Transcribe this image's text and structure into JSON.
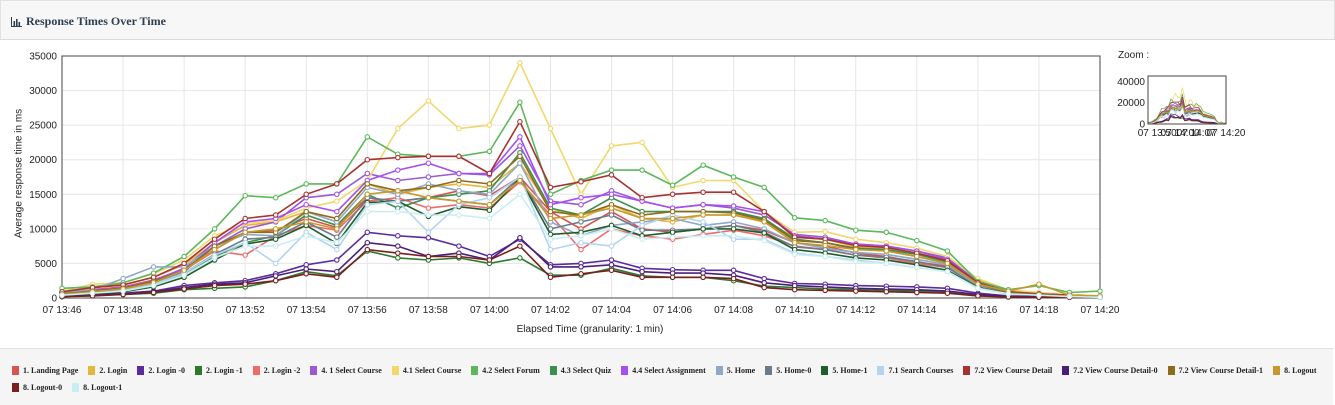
{
  "header": {
    "title": "Response Times Over Time",
    "icon": "bar-chart-icon"
  },
  "zoom_label": "Zoom :",
  "chart_data": {
    "type": "line",
    "ylabel": "Average response time in ms",
    "xlabel": "Elapsed Time (granularity: 1 min)",
    "ylim": [
      0,
      35000
    ],
    "yticks": [
      0,
      5000,
      10000,
      15000,
      20000,
      25000,
      30000,
      35000
    ],
    "x": [
      "13:46",
      "13:47",
      "13:48",
      "13:49",
      "13:50",
      "13:51",
      "13:52",
      "13:53",
      "13:54",
      "13:55",
      "13:56",
      "13:57",
      "13:58",
      "13:59",
      "14:00",
      "14:01",
      "14:02",
      "14:03",
      "14:04",
      "14:05",
      "14:06",
      "14:07",
      "14:08",
      "14:09",
      "14:10",
      "14:11",
      "14:12",
      "14:13",
      "14:14",
      "14:15",
      "14:16",
      "14:17",
      "14:18",
      "14:19",
      "14:20"
    ],
    "xtick_labels": [
      "07 13:46",
      "07 13:48",
      "07 13:50",
      "07 13:52",
      "07 13:54",
      "07 13:56",
      "07 13:58",
      "07 14:00",
      "07 14:02",
      "07 14:04",
      "07 14:06",
      "07 14:08",
      "07 14:10",
      "07 14:12",
      "07 14:14",
      "07 14:16",
      "07 14:18",
      "07 14:20"
    ],
    "grid": true,
    "legend_position": "bottom",
    "series": [
      {
        "name": "1. Landing Page",
        "color": "#d9534f",
        "values": [
          800,
          1200,
          1600,
          2600,
          4200,
          7000,
          9500,
          9800,
          11500,
          10200,
          14500,
          14000,
          14500,
          15500,
          14800,
          17500,
          12500,
          10000,
          12500,
          10000,
          9500,
          10000,
          10500,
          9800,
          8000,
          7500,
          6500,
          6000,
          5200,
          4600,
          1900,
          800,
          500,
          300,
          200
        ]
      },
      {
        "name": "2. Login",
        "color": "#e6b53c",
        "values": [
          900,
          1500,
          1900,
          3000,
          4800,
          8000,
          10500,
          11000,
          12500,
          11500,
          16500,
          15000,
          16000,
          16500,
          16000,
          19500,
          13000,
          11500,
          13500,
          11500,
          11000,
          12000,
          12000,
          11200,
          8800,
          8500,
          7400,
          7200,
          6500,
          5500,
          2600,
          1000,
          700,
          500,
          300
        ]
      },
      {
        "name": "2. Login -0",
        "color": "#5a2ca0",
        "values": [
          300,
          500,
          700,
          1000,
          1800,
          2200,
          2500,
          3500,
          4800,
          5500,
          9500,
          9000,
          8700,
          7500,
          6000,
          8500,
          4800,
          5000,
          5500,
          4300,
          4100,
          4000,
          4000,
          2800,
          2100,
          2000,
          1800,
          1700,
          1600,
          1400,
          700,
          300,
          200,
          200,
          100
        ]
      },
      {
        "name": "2. Login -1",
        "color": "#2d7a2d",
        "values": [
          200,
          400,
          500,
          700,
          1200,
          1400,
          1600,
          2500,
          3800,
          3200,
          6800,
          5800,
          5500,
          5800,
          5000,
          5800,
          3300,
          3300,
          4300,
          3200,
          3000,
          3000,
          2500,
          1700,
          1500,
          1300,
          1200,
          1100,
          1000,
          900,
          400,
          200,
          100,
          100,
          100
        ]
      },
      {
        "name": "2. Login -2",
        "color": "#f06a6a",
        "values": [
          700,
          1100,
          1500,
          2500,
          4000,
          6800,
          6200,
          9000,
          10500,
          9800,
          14000,
          14500,
          13000,
          13500,
          13000,
          16800,
          12000,
          7000,
          10000,
          9000,
          8500,
          9200,
          9800,
          9000,
          7500,
          7000,
          6200,
          5800,
          5000,
          4400,
          1800,
          800,
          500,
          300,
          200
        ]
      },
      {
        "name": "4. 1 Select Course",
        "color": "#9b59d6",
        "values": [
          600,
          1000,
          1300,
          2300,
          3800,
          7500,
          10000,
          11000,
          14500,
          15000,
          18000,
          17000,
          17500,
          18000,
          17800,
          22000,
          14000,
          13500,
          15500,
          14000,
          13000,
          13500,
          13000,
          12000,
          9200,
          8800,
          7800,
          7500,
          6800,
          5800,
          2300,
          900,
          600,
          400,
          200
        ]
      },
      {
        "name": "4.1 Select Course",
        "color": "#f0d86c",
        "values": [
          1000,
          2000,
          2200,
          3500,
          5500,
          9000,
          10800,
          11200,
          13000,
          14000,
          17000,
          24500,
          28500,
          24500,
          25000,
          34000,
          24500,
          15000,
          22000,
          22500,
          16000,
          17000,
          17000,
          12500,
          9500,
          9600,
          8500,
          8000,
          7200,
          6000,
          2800,
          1200,
          800,
          500,
          300
        ]
      },
      {
        "name": "4.2 Select Forum",
        "color": "#5cb85c",
        "values": [
          1400,
          1600,
          2200,
          3600,
          6000,
          10000,
          14800,
          14500,
          16500,
          16500,
          23300,
          20800,
          20500,
          20500,
          21200,
          28300,
          15000,
          17000,
          18500,
          18500,
          16300,
          19200,
          17500,
          16000,
          11600,
          11200,
          9800,
          9500,
          8300,
          6800,
          2400,
          1200,
          1800,
          800,
          1000
        ]
      },
      {
        "name": "4.3 Select Quiz",
        "color": "#3d8f4f",
        "values": [
          500,
          900,
          1200,
          2000,
          3500,
          6000,
          8000,
          9000,
          12000,
          10500,
          15000,
          13000,
          14500,
          15000,
          15500,
          21000,
          13000,
          12000,
          14500,
          12500,
          12500,
          12500,
          12500,
          11500,
          8500,
          8000,
          7200,
          7000,
          6300,
          5200,
          2000,
          800,
          500,
          300,
          200
        ]
      },
      {
        "name": "4.4 Select Assignment",
        "color": "#a64ff0",
        "values": [
          700,
          1100,
          1500,
          2500,
          4300,
          8000,
          11000,
          11500,
          13500,
          12500,
          17000,
          18500,
          19500,
          18000,
          18000,
          23300,
          13500,
          14500,
          15000,
          14000,
          13000,
          13500,
          13300,
          12500,
          9000,
          8500,
          7800,
          7500,
          6800,
          5600,
          2200,
          900,
          600,
          400,
          200
        ]
      },
      {
        "name": "5. Home",
        "color": "#8fa8c6",
        "values": [
          800,
          1200,
          2800,
          4500,
          4500,
          7500,
          9200,
          9000,
          12500,
          11000,
          16000,
          15000,
          16500,
          15500,
          15000,
          19500,
          11000,
          9000,
          10500,
          11000,
          11500,
          10500,
          11000,
          10000,
          8000,
          7200,
          6600,
          6300,
          5600,
          4800,
          1800,
          800,
          500,
          300,
          200
        ]
      },
      {
        "name": "5. Home-0",
        "color": "#6b7b8c",
        "values": [
          400,
          800,
          1300,
          2300,
          3600,
          6300,
          8500,
          8800,
          11000,
          8800,
          14500,
          14000,
          14500,
          14000,
          13500,
          17500,
          10000,
          11000,
          12000,
          9800,
          9800,
          10000,
          10500,
          9500,
          7400,
          7000,
          6200,
          5900,
          5300,
          4400,
          1600,
          700,
          400,
          300,
          200
        ]
      },
      {
        "name": "5. Home-1",
        "color": "#1f5e2a",
        "values": [
          300,
          600,
          900,
          1600,
          3000,
          5500,
          7800,
          8500,
          10500,
          7900,
          13800,
          14000,
          11800,
          13200,
          12700,
          17300,
          9200,
          9500,
          10500,
          9000,
          9500,
          10000,
          10000,
          9400,
          7000,
          6500,
          5800,
          5500,
          4800,
          4000,
          1500,
          600,
          400,
          300,
          100
        ]
      },
      {
        "name": "7.1 Search Courses",
        "color": "#b3d4f0",
        "values": [
          500,
          900,
          1200,
          2000,
          3600,
          6200,
          8000,
          5000,
          9500,
          7000,
          13500,
          14000,
          9500,
          13500,
          14500,
          17500,
          7000,
          8000,
          7500,
          10500,
          12000,
          11000,
          8500,
          8500,
          6500,
          6000,
          5500,
          5000,
          4400,
          3800,
          1400,
          600,
          400,
          300,
          200
        ]
      },
      {
        "name": "7.2 View Course Detail",
        "color": "#a83232",
        "values": [
          900,
          1500,
          1900,
          3000,
          5000,
          8500,
          11500,
          12000,
          15000,
          16500,
          20000,
          20300,
          20500,
          20500,
          18000,
          25500,
          16000,
          16800,
          17800,
          14500,
          15000,
          15300,
          15300,
          12500,
          8800,
          8500,
          7600,
          7300,
          6500,
          5400,
          2200,
          900,
          600,
          400,
          200
        ]
      },
      {
        "name": "7.2 View Course Detail-0",
        "color": "#4a1e7a",
        "values": [
          200,
          400,
          600,
          900,
          1500,
          2000,
          2200,
          3200,
          4200,
          3800,
          8000,
          7500,
          6000,
          6500,
          5500,
          8700,
          4500,
          4500,
          4800,
          3800,
          3600,
          3600,
          3300,
          2200,
          1800,
          1600,
          1400,
          1300,
          1200,
          1000,
          500,
          200,
          200,
          100,
          100
        ]
      },
      {
        "name": "7.2 View Course Detail-1",
        "color": "#8c6d1f",
        "values": [
          600,
          1000,
          1400,
          2400,
          4000,
          7500,
          9500,
          9500,
          12500,
          11500,
          16500,
          15500,
          16000,
          17000,
          16500,
          20500,
          12500,
          12000,
          13500,
          12000,
          12500,
          12500,
          12300,
          11300,
          8300,
          8000,
          7100,
          6800,
          6000,
          5000,
          2000,
          800,
          500,
          300,
          200
        ]
      },
      {
        "name": "8. Logout",
        "color": "#c49a2e",
        "values": [
          500,
          900,
          1300,
          2200,
          4000,
          7000,
          9500,
          10000,
          11000,
          10000,
          15000,
          15500,
          14500,
          14000,
          13500,
          17000,
          11500,
          12000,
          13000,
          11500,
          11500,
          12000,
          12000,
          11000,
          8000,
          7600,
          7000,
          6800,
          6000,
          5000,
          2000,
          1000,
          2000,
          400,
          300
        ]
      },
      {
        "name": "8. Logout-0",
        "color": "#7a1f1f",
        "values": [
          200,
          300,
          500,
          800,
          1300,
          1800,
          2000,
          2500,
          3500,
          3000,
          7000,
          6500,
          6000,
          6000,
          5500,
          7500,
          3000,
          3500,
          4000,
          3000,
          3000,
          3000,
          2800,
          1500,
          1200,
          1100,
          1000,
          900,
          800,
          700,
          300,
          150,
          100,
          100,
          100
        ]
      },
      {
        "name": "8. Logout-1",
        "color": "#c8eef2",
        "values": [
          400,
          700,
          1000,
          1800,
          3300,
          5800,
          7500,
          7500,
          9000,
          8000,
          12500,
          12500,
          12000,
          12000,
          11500,
          15000,
          8500,
          9000,
          10000,
          8500,
          8800,
          9000,
          9000,
          8300,
          6300,
          6000,
          5300,
          5000,
          4400,
          3800,
          1400,
          600,
          400,
          200,
          100
        ]
      }
    ]
  },
  "zoom_chart": {
    "yticks": [
      "40000",
      "20000",
      "0"
    ],
    "xticks": [
      "07 13:50",
      "07 14:00",
      "07 14:07",
      "07 14:20"
    ],
    "ymax": 45000
  }
}
